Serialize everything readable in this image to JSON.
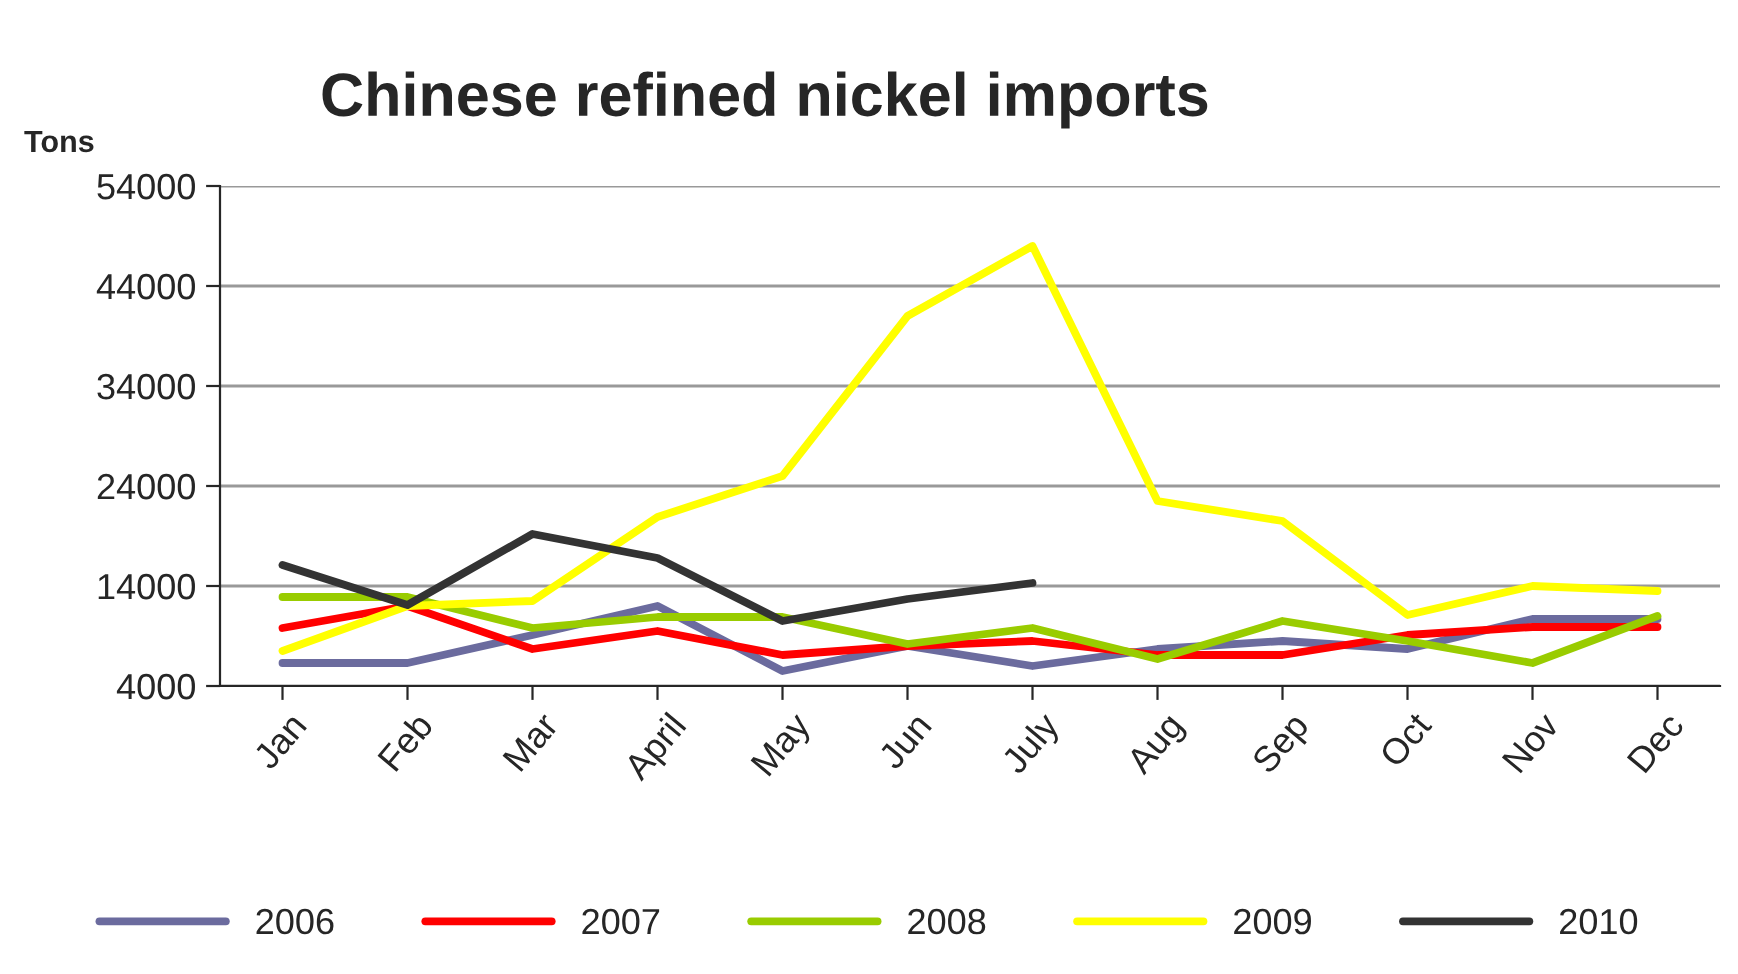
{
  "chart_data": {
    "type": "line",
    "title": "Chinese refined nickel imports",
    "ylabel": "Tons",
    "categories": [
      "Jan",
      "Feb",
      "Mar",
      "April",
      "May",
      "Jun",
      "July",
      "Aug",
      "Sep",
      "Oct",
      "Nov",
      "Dec"
    ],
    "series": [
      {
        "name": "2006",
        "color": "#6b6b9e",
        "values": [
          6300,
          6300,
          9100,
          12000,
          5500,
          8000,
          6000,
          7700,
          8500,
          7700,
          10700,
          10700
        ]
      },
      {
        "name": "2007",
        "color": "#ff0000",
        "values": [
          9800,
          12000,
          7700,
          9500,
          7100,
          8000,
          8500,
          7100,
          7100,
          9100,
          9900,
          9900
        ]
      },
      {
        "name": "2008",
        "color": "#99cc00",
        "values": [
          12900,
          12900,
          9800,
          10900,
          10900,
          8200,
          9800,
          6700,
          10500,
          8500,
          6300,
          11000
        ]
      },
      {
        "name": "2009",
        "color": "#ffff00",
        "values": [
          7500,
          12000,
          12500,
          20900,
          25000,
          41000,
          48000,
          22500,
          20500,
          11100,
          14000,
          13500
        ]
      },
      {
        "name": "2010",
        "color": "#333333",
        "values": [
          16100,
          12100,
          19200,
          16800,
          10500,
          12700,
          14300,
          null,
          null,
          null,
          null,
          null
        ]
      }
    ],
    "ylim": [
      4000,
      54000
    ],
    "yticks": [
      4000,
      14000,
      24000,
      34000,
      44000,
      54000
    ],
    "grid": "y",
    "legend": "bottom",
    "marker": "none",
    "line_style": "solid"
  }
}
